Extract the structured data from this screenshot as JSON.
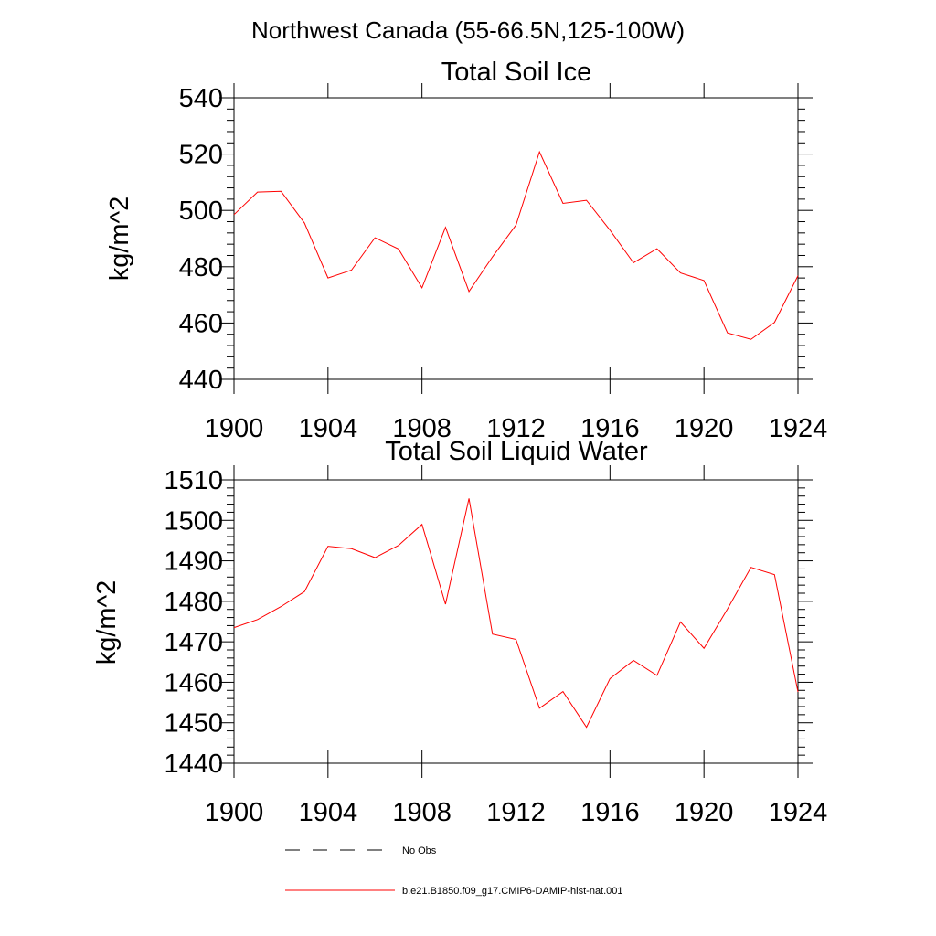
{
  "figure": {
    "suptitle": "Northwest Canada (55-66.5N,125-100W)"
  },
  "colors": {
    "series": "#ff0000",
    "axes": "#000000",
    "no_obs": "#000000"
  },
  "legend": {
    "items": [
      {
        "label": "No Obs",
        "style": "dashed",
        "color": "#000000"
      },
      {
        "label": "b.e21.B1850.f09_g17.CMIP6-DAMIP-hist-nat.001",
        "style": "solid",
        "color": "#ff0000"
      }
    ]
  },
  "chart_data": [
    {
      "type": "line",
      "title": "Total Soil Ice",
      "xlabel": "",
      "ylabel": "kg/m^2",
      "xlim": [
        1900,
        1924
      ],
      "ylim": [
        440,
        540
      ],
      "xticks": [
        1900,
        1904,
        1908,
        1912,
        1916,
        1920,
        1924
      ],
      "yticks": [
        440,
        460,
        480,
        500,
        520,
        540
      ],
      "x": [
        1900,
        1901,
        1902,
        1903,
        1904,
        1905,
        1906,
        1907,
        1908,
        1909,
        1910,
        1911,
        1912,
        1913,
        1914,
        1915,
        1916,
        1917,
        1918,
        1919,
        1920,
        1921,
        1922,
        1923,
        1924
      ],
      "series": [
        {
          "name": "b.e21.B1850.f09_g17.CMIP6-DAMIP-hist-nat.001",
          "values": [
            498.5,
            506.5,
            506.8,
            495.5,
            476.0,
            478.8,
            490.3,
            486.3,
            472.5,
            494.0,
            471.2,
            483.5,
            494.8,
            520.8,
            502.5,
            503.6,
            493.0,
            481.4,
            486.4,
            477.8,
            475.1,
            456.5,
            454.2,
            460.2,
            476.8
          ]
        }
      ],
      "grid": false
    },
    {
      "type": "line",
      "title": "Total Soil Liquid Water",
      "xlabel": "",
      "ylabel": "kg/m^2",
      "xlim": [
        1900,
        1924
      ],
      "ylim": [
        1440,
        1510
      ],
      "xticks": [
        1900,
        1904,
        1908,
        1912,
        1916,
        1920,
        1924
      ],
      "yticks": [
        1440,
        1450,
        1460,
        1470,
        1480,
        1490,
        1500,
        1510
      ],
      "x": [
        1900,
        1901,
        1902,
        1903,
        1904,
        1905,
        1906,
        1907,
        1908,
        1909,
        1910,
        1911,
        1912,
        1913,
        1914,
        1915,
        1916,
        1917,
        1918,
        1919,
        1920,
        1921,
        1922,
        1923,
        1924
      ],
      "series": [
        {
          "name": "b.e21.B1850.f09_g17.CMIP6-DAMIP-hist-nat.001",
          "values": [
            1473.5,
            1475.5,
            1478.7,
            1482.4,
            1493.6,
            1493.0,
            1490.8,
            1493.8,
            1499.0,
            1479.3,
            1505.4,
            1471.9,
            1470.6,
            1453.6,
            1457.7,
            1448.9,
            1460.9,
            1465.4,
            1461.7,
            1474.9,
            1468.4,
            1478.1,
            1488.4,
            1486.6,
            1457.6
          ]
        }
      ],
      "grid": false
    }
  ]
}
